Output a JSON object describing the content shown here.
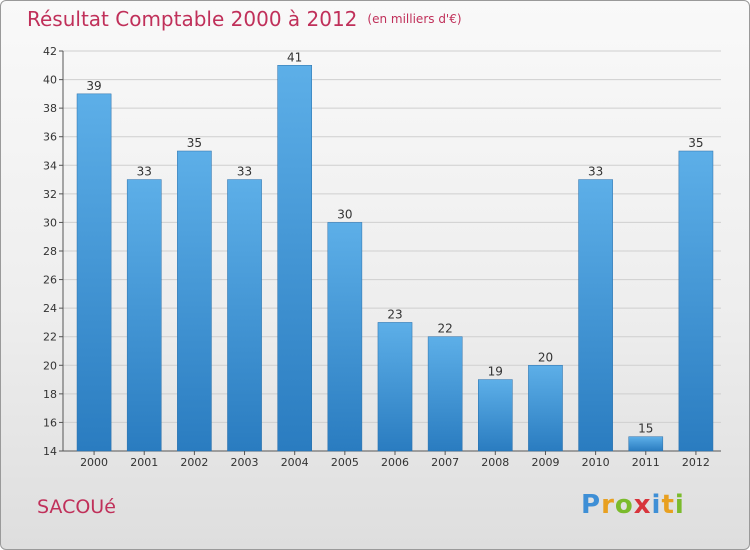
{
  "title": "Résultat Comptable 2000 à 2012",
  "unit": "(en milliers d'€)",
  "commune": "SACOUé",
  "logo": {
    "letters": [
      "P",
      "r",
      "o",
      "x",
      "i",
      "t",
      "i"
    ],
    "colors": [
      "#3e8fd6",
      "#e8a020",
      "#7bbb2c",
      "#d8343c",
      "#3e8fd6",
      "#e8a020",
      "#7bbb2c"
    ]
  },
  "colors": {
    "bar_top": "#5dafe8",
    "bar_bottom": "#2a7cc0",
    "title": "#c0305a"
  },
  "chart_data": {
    "type": "bar",
    "title": "Résultat Comptable 2000 à 2012",
    "xlabel": "",
    "ylabel": "",
    "categories": [
      "2000",
      "2001",
      "2002",
      "2003",
      "2004",
      "2005",
      "2006",
      "2007",
      "2008",
      "2009",
      "2010",
      "2011",
      "2012"
    ],
    "values": [
      39,
      33,
      35,
      33,
      41,
      30,
      23,
      22,
      19,
      20,
      33,
      15,
      35
    ],
    "ylim": [
      14,
      42
    ],
    "yticks": [
      14,
      16,
      18,
      20,
      22,
      24,
      26,
      28,
      30,
      32,
      34,
      36,
      38,
      40,
      42
    ],
    "grid": true
  }
}
